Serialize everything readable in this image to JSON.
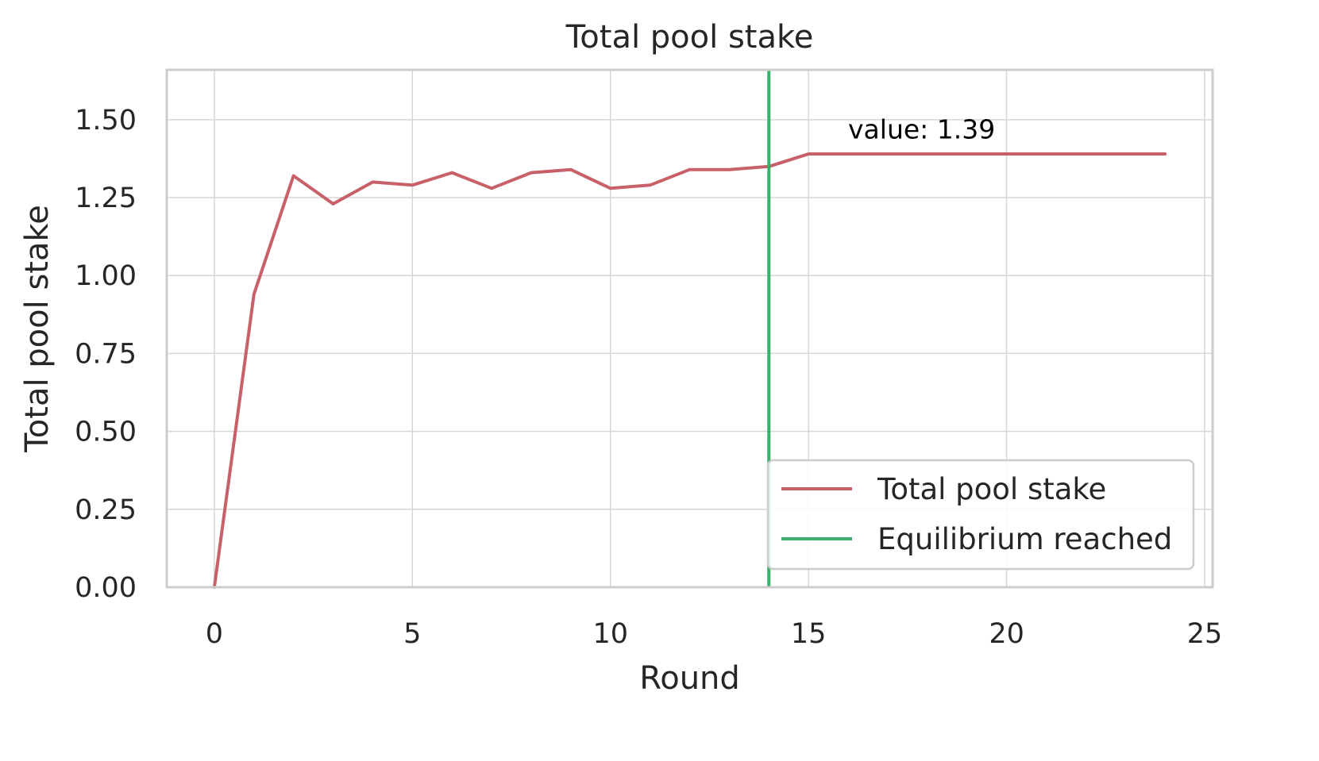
{
  "chart_data": {
    "type": "line",
    "title": "Total pool stake",
    "xlabel": "Round",
    "ylabel": "Total pool stake",
    "xlim": [
      -1.2,
      25.2
    ],
    "ylim": [
      0,
      1.66
    ],
    "xticks": [
      0,
      5,
      10,
      15,
      20,
      25
    ],
    "xtick_labels": [
      "0",
      "5",
      "10",
      "15",
      "20",
      "25"
    ],
    "yticks": [
      0,
      0.25,
      0.5,
      0.75,
      1.0,
      1.25,
      1.5
    ],
    "ytick_labels": [
      "0.00",
      "0.25",
      "0.50",
      "0.75",
      "1.00",
      "1.25",
      "1.50"
    ],
    "grid": true,
    "legend_position": "lower-right",
    "series": [
      {
        "name": "Total pool stake",
        "color": "#c8606a",
        "x": [
          0,
          1,
          2,
          3,
          4,
          5,
          6,
          7,
          8,
          9,
          10,
          11,
          12,
          13,
          14,
          15,
          16,
          17,
          18,
          19,
          20,
          21,
          22,
          23,
          24
        ],
        "values": [
          0.0,
          0.94,
          1.32,
          1.23,
          1.3,
          1.29,
          1.33,
          1.28,
          1.33,
          1.34,
          1.28,
          1.29,
          1.34,
          1.34,
          1.35,
          1.39,
          1.39,
          1.39,
          1.39,
          1.39,
          1.39,
          1.39,
          1.39,
          1.39,
          1.39
        ]
      }
    ],
    "vertical_lines": [
      {
        "name": "Equilibrium reached",
        "x": 14,
        "color": "#3aae6b"
      }
    ],
    "annotations": [
      {
        "text": "value: 1.39",
        "x": 16,
        "y": 1.44
      }
    ]
  }
}
